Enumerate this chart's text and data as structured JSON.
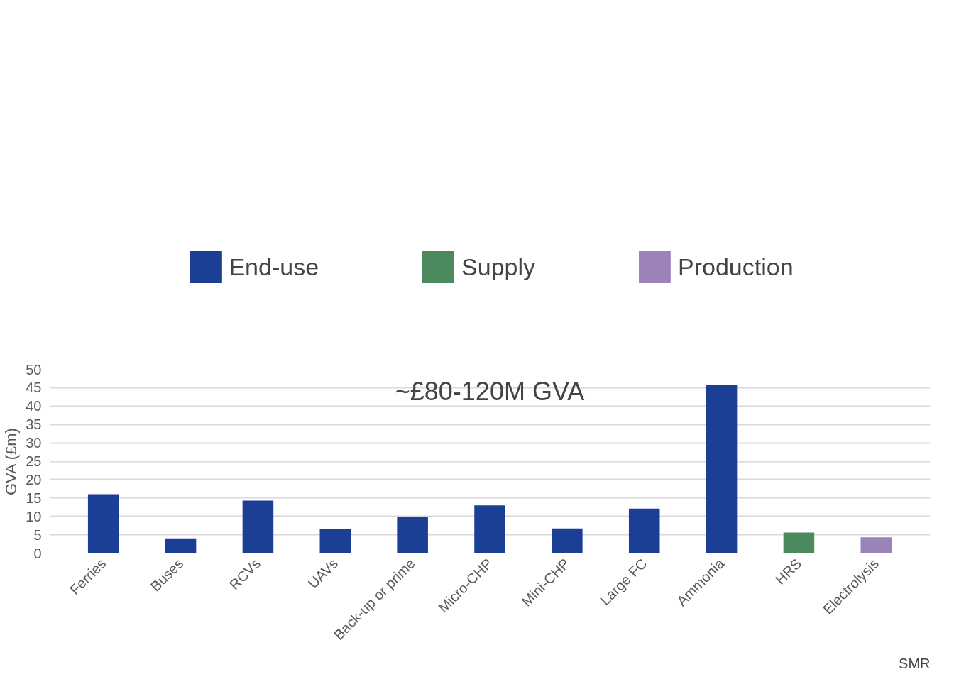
{
  "chart_data": {
    "type": "bar",
    "ylabel": "GVA (£m)",
    "categories": [
      "Ferries",
      "Buses",
      "RCVs",
      "UAVs",
      "Back-up or prime",
      "Micro-CHP",
      "Mini-CHP",
      "Large FC",
      "Ammonia",
      "HRS",
      "Electrolysis"
    ],
    "series": [
      {
        "name": "End-use",
        "color": "#1b3f94",
        "values": [
          16,
          4,
          14.3,
          6.6,
          9.9,
          13,
          6.7,
          12.1,
          45.8,
          null,
          null
        ]
      },
      {
        "name": "Supply",
        "color": "#4a8a5e",
        "values": [
          null,
          null,
          null,
          null,
          null,
          null,
          null,
          null,
          null,
          5.6,
          null
        ]
      },
      {
        "name": "Production",
        "color": "#9b82b8",
        "values": [
          null,
          null,
          null,
          null,
          null,
          null,
          null,
          null,
          null,
          null,
          4.3
        ]
      }
    ],
    "ylim": [
      0,
      50
    ],
    "yticks": [
      0,
      5,
      10,
      15,
      20,
      25,
      30,
      35,
      40,
      45,
      50
    ],
    "grid": "y",
    "legend": "top",
    "annotations": [
      "~£80-120M GVA",
      "SMR"
    ]
  }
}
